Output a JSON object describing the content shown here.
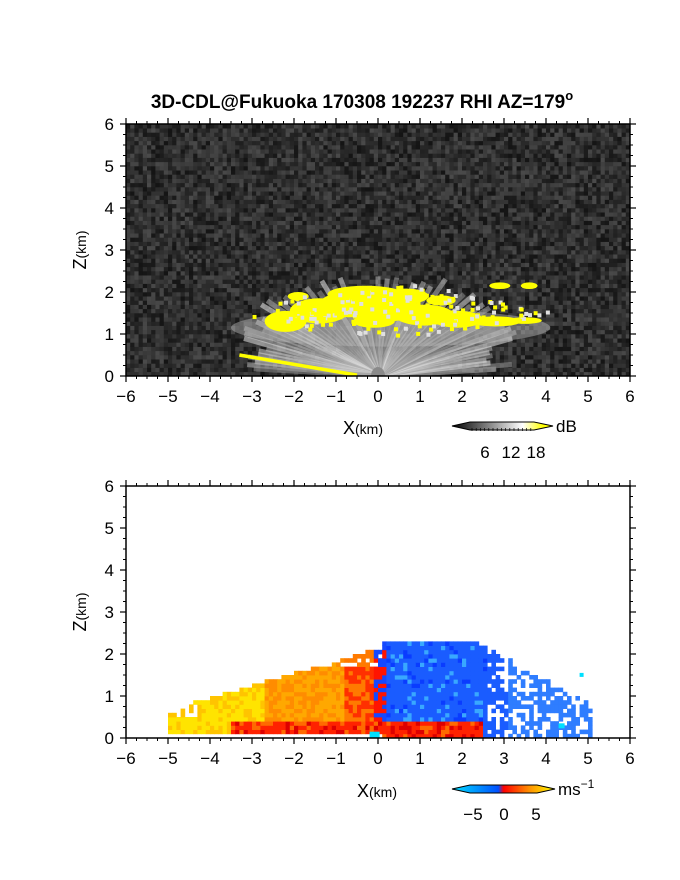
{
  "figure": {
    "title": "3D-CDL@Fukuoka 170308 192237 RHI AZ=179",
    "title_superscript": "o"
  },
  "chart_data": [
    {
      "type": "heatmap",
      "quantity": "reflectivity",
      "xlabel": "X",
      "xlabel_unit": "(km)",
      "ylabel": "Z",
      "ylabel_unit": "(km)",
      "xlim": [
        -6,
        6
      ],
      "ylim": [
        0,
        6
      ],
      "x_ticks": [
        -6,
        -5,
        -4,
        -3,
        -2,
        -1,
        0,
        1,
        2,
        3,
        4,
        5,
        6
      ],
      "y_ticks": [
        0,
        1,
        2,
        3,
        4,
        5,
        6
      ],
      "grid": false,
      "background_color": "#0e0e0e",
      "colorbar": {
        "unit": "dB",
        "ticks": [
          "6",
          "12",
          "18"
        ],
        "range": [
          0,
          21
        ],
        "colors": [
          "#000000",
          "#ffffff",
          "#ffff00"
        ]
      },
      "regions": [
        {
          "name": "weak echo fan",
          "x_range": [
            -4.2,
            4.2
          ],
          "z_range": [
            0,
            1.4
          ],
          "value_db": 10,
          "color": "#cfcfcf"
        },
        {
          "name": "strong echo layer",
          "x_range": [
            -3.1,
            3.9
          ],
          "z_range": [
            0.9,
            2.3
          ],
          "value_db": 20,
          "color": "#ffff00"
        },
        {
          "name": "ground clutter",
          "x_range": [
            -3.4,
            -0.5
          ],
          "z_range": [
            0.0,
            0.5
          ],
          "value_db": 20,
          "color": "#ffff00"
        }
      ]
    },
    {
      "type": "heatmap",
      "quantity": "doppler velocity",
      "xlabel": "X",
      "xlabel_unit": "(km)",
      "ylabel": "Z",
      "ylabel_unit": "(km)",
      "xlim": [
        -6,
        6
      ],
      "ylim": [
        0,
        6
      ],
      "x_ticks": [
        -6,
        -5,
        -4,
        -3,
        -2,
        -1,
        0,
        1,
        2,
        3,
        4,
        5,
        6
      ],
      "y_ticks": [
        0,
        1,
        2,
        3,
        4,
        5,
        6
      ],
      "grid": false,
      "background_color": "#ffffff",
      "colorbar": {
        "unit": "ms",
        "unit_superscript": "−1",
        "ticks": [
          "−5",
          "0",
          "5"
        ],
        "range": [
          -7,
          7
        ],
        "colors": [
          "#00e0ff",
          "#0050ff",
          "#ff0000",
          "#ffff00"
        ]
      },
      "regions": [
        {
          "name": "receding flow",
          "x_range": [
            -5.1,
            0.0
          ],
          "z_range": [
            0.1,
            2.1
          ],
          "value_ms": 5,
          "color": "#ffc800"
        },
        {
          "name": "approaching flow",
          "x_range": [
            0.0,
            5.0
          ],
          "z_range": [
            0.0,
            2.3
          ],
          "value_ms": -4,
          "color": "#1a66ff"
        },
        {
          "name": "surface outflow",
          "x_range": [
            -3.5,
            2.3
          ],
          "z_range": [
            0.0,
            0.5
          ],
          "value_ms": 1,
          "color": "#ff2200"
        }
      ]
    }
  ]
}
